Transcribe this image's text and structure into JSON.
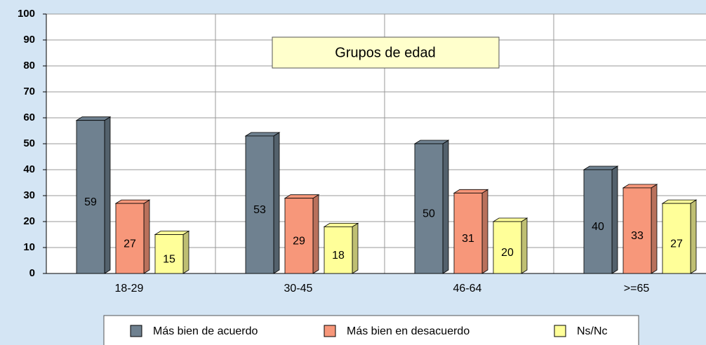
{
  "chart_data": {
    "type": "bar",
    "title": "Grupos de edad",
    "categories": [
      "18-29",
      "30-45",
      "46-64",
      ">=65"
    ],
    "series": [
      {
        "name": "Más bien de acuerdo",
        "color": "#6f8190",
        "values": [
          59,
          53,
          50,
          40
        ]
      },
      {
        "name": "Más bien en desacuerdo",
        "color": "#f7977a",
        "values": [
          27,
          29,
          31,
          33
        ]
      },
      {
        "name": "Ns/Nc",
        "color": "#ffff99",
        "values": [
          15,
          18,
          20,
          27
        ]
      }
    ],
    "ylim": [
      0,
      100
    ],
    "yticks": [
      0,
      10,
      20,
      30,
      40,
      50,
      60,
      70,
      80,
      90,
      100
    ],
    "grid": true
  }
}
